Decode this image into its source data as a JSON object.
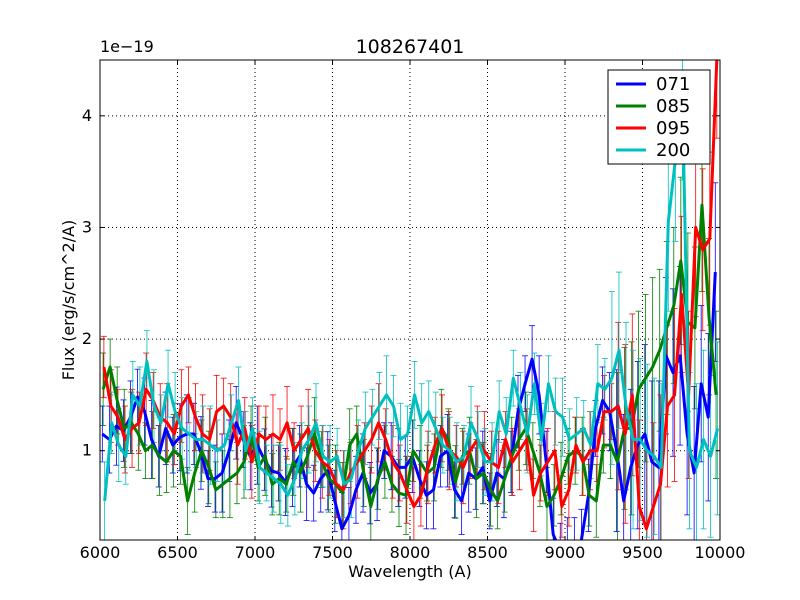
{
  "chart_data": {
    "type": "line",
    "title": "108267401",
    "xlabel": "Wavelength (A)",
    "ylabel": "Flux (erg/s/cm^2/A)",
    "y_offset_label": "1e−19",
    "xlim": [
      6000,
      10000
    ],
    "ylim": [
      0.2,
      4.5
    ],
    "xticks": [
      6000,
      6500,
      7000,
      7500,
      8000,
      8500,
      9000,
      9500,
      10000
    ],
    "yticks": [
      1,
      2,
      3,
      4
    ],
    "grid": true,
    "legend_position": "top-right",
    "x_step": 50,
    "series": [
      {
        "name": "071",
        "color": "#0000ff",
        "values": [
          1.15,
          1.1,
          1.22,
          1.18,
          1.3,
          1.48,
          1.35,
          1.1,
          0.95,
          1.2,
          1.05,
          1.12,
          1.15,
          1.15,
          0.98,
          0.75,
          0.75,
          0.8,
          1.0,
          1.25,
          1.1,
          0.95,
          1.05,
          0.92,
          0.82,
          0.8,
          0.72,
          0.85,
          0.95,
          0.7,
          0.62,
          0.75,
          0.82,
          0.55,
          0.3,
          0.42,
          0.65,
          0.8,
          0.62,
          0.7,
          1.0,
          0.95,
          0.85,
          0.85,
          0.95,
          0.75,
          0.6,
          0.65,
          0.95,
          1.0,
          0.65,
          0.55,
          0.8,
          0.75,
          0.85,
          0.55,
          0.8,
          0.75,
          0.9,
          1.35,
          1.6,
          1.82,
          1.5,
          0.9,
          0.25,
          0.1,
          0.1,
          0.05,
          0.2,
          0.6,
          1.2,
          1.45,
          1.35,
          1.0,
          0.55,
          0.85,
          1.05,
          1.15,
          0.9,
          0.85,
          1.85,
          1.7,
          1.85,
          1.15,
          0.8,
          1.6,
          1.3,
          2.6
        ]
      },
      {
        "name": "085",
        "color": "#008000",
        "values": [
          1.55,
          1.75,
          1.45,
          1.2,
          1.25,
          1.15,
          1.0,
          1.05,
          0.95,
          0.9,
          1.0,
          0.95,
          0.55,
          0.8,
          1.0,
          0.85,
          0.65,
          0.7,
          0.75,
          0.8,
          0.9,
          1.15,
          0.85,
          0.95,
          0.7,
          0.75,
          0.7,
          0.9,
          0.8,
          0.95,
          1.15,
          0.92,
          0.75,
          0.7,
          0.62,
          1.05,
          1.15,
          0.8,
          0.5,
          0.75,
          0.9,
          0.7,
          0.62,
          0.6,
          1.0,
          0.9,
          0.8,
          0.85,
          1.2,
          1.1,
          0.72,
          0.95,
          1.0,
          0.75,
          0.8,
          0.65,
          0.55,
          0.75,
          0.95,
          1.1,
          1.2,
          1.0,
          0.8,
          0.5,
          0.6,
          0.75,
          0.95,
          1.0,
          0.95,
          0.6,
          0.55,
          1.05,
          1.05,
          0.9,
          1.2,
          1.2,
          1.55,
          1.65,
          1.75,
          1.9,
          2.1,
          2.3,
          2.7,
          2.15,
          2.1,
          3.2,
          2.2,
          1.5
        ]
      },
      {
        "name": "095",
        "color": "#ff0000",
        "values": [
          1.75,
          1.4,
          1.3,
          1.1,
          1.2,
          1.25,
          1.55,
          1.45,
          1.3,
          1.25,
          1.15,
          1.4,
          1.5,
          1.3,
          1.15,
          1.1,
          1.35,
          1.4,
          1.3,
          1.05,
          1.2,
          0.9,
          1.15,
          1.1,
          1.15,
          1.1,
          1.25,
          1.0,
          1.1,
          1.2,
          1.0,
          0.9,
          0.85,
          0.7,
          0.65,
          0.8,
          0.9,
          1.0,
          1.1,
          1.25,
          1.1,
          0.9,
          0.8,
          0.65,
          0.5,
          0.6,
          0.85,
          1.05,
          1.2,
          1.0,
          0.95,
          0.85,
          1.0,
          1.1,
          1.0,
          0.9,
          0.85,
          1.1,
          0.9,
          1.0,
          1.1,
          0.6,
          0.8,
          0.9,
          1.0,
          0.5,
          0.65,
          1.05,
          0.9,
          1.0,
          1.0,
          1.35,
          1.35,
          1.4,
          1.15,
          1.5,
          0.5,
          0.3,
          0.5,
          0.7,
          1.4,
          1.5,
          2.4,
          1.5,
          3.0,
          2.8,
          2.9,
          4.5
        ]
      },
      {
        "name": "200",
        "color": "#00bfbf",
        "values": [
          0.55,
          1.25,
          1.05,
          0.95,
          1.5,
          1.4,
          1.8,
          1.4,
          1.25,
          1.6,
          1.35,
          1.2,
          1.15,
          1.1,
          1.1,
          1.05,
          1.0,
          1.05,
          1.25,
          1.45,
          1.0,
          1.2,
          0.85,
          0.8,
          0.75,
          0.7,
          0.6,
          0.75,
          1.0,
          1.1,
          1.25,
          0.95,
          0.9,
          0.95,
          0.7,
          0.75,
          1.0,
          1.2,
          1.3,
          1.4,
          1.5,
          1.4,
          1.1,
          1.15,
          1.5,
          1.25,
          1.35,
          1.2,
          1.05,
          1.0,
          0.9,
          0.95,
          1.25,
          1.1,
          0.9,
          0.9,
          1.35,
          1.15,
          1.65,
          1.4,
          1.15,
          1.6,
          1.1,
          1.6,
          1.35,
          1.3,
          1.1,
          1.15,
          1.2,
          1.05,
          1.6,
          1.55,
          1.65,
          1.9,
          1.4,
          1.1,
          1.1,
          1.0,
          0.95,
          0.85,
          3.05,
          3.6,
          4.2,
          1.0,
          0.85,
          1.1,
          0.95,
          1.2
        ]
      }
    ]
  }
}
